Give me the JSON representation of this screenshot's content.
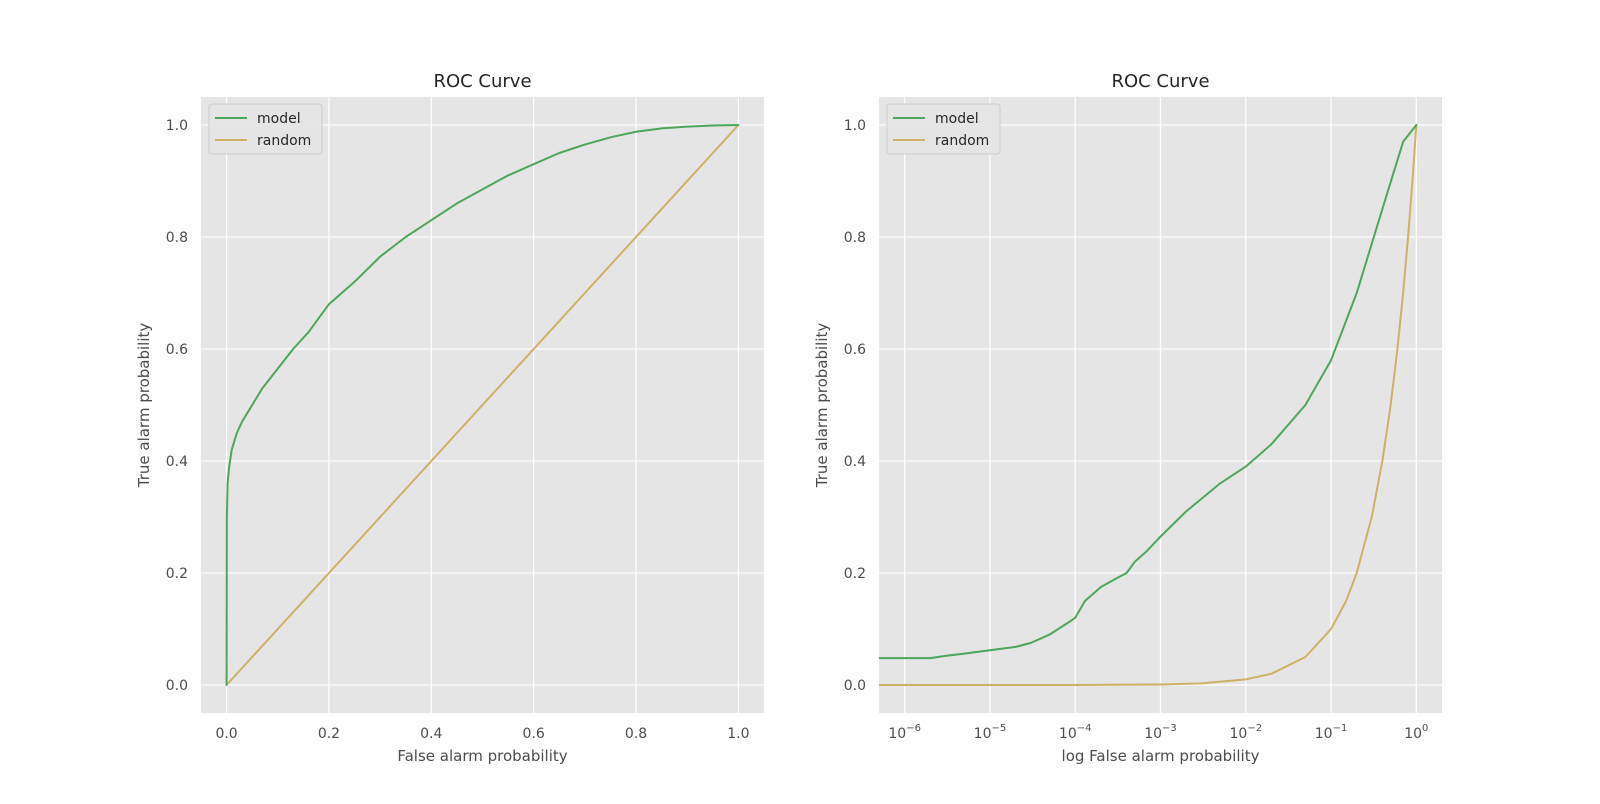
{
  "colors": {
    "model": "#4da65a",
    "random": "#cdb165",
    "background": "#e5e5e5"
  },
  "chart_data": [
    {
      "type": "line",
      "title": "ROC Curve",
      "xlabel": "False alarm probability",
      "ylabel": "True alarm probability",
      "xscale": "linear",
      "xlim": [
        -0.05,
        1.05
      ],
      "ylim": [
        -0.05,
        1.05
      ],
      "xticks": [
        0.0,
        0.2,
        0.4,
        0.6,
        0.8,
        1.0
      ],
      "xtick_labels": [
        "0.0",
        "0.2",
        "0.4",
        "0.6",
        "0.8",
        "1.0"
      ],
      "yticks": [
        0.0,
        0.2,
        0.4,
        0.6,
        0.8,
        1.0
      ],
      "ytick_labels": [
        "0.0",
        "0.2",
        "0.4",
        "0.6",
        "0.8",
        "1.0"
      ],
      "grid": true,
      "legend": "top-left",
      "series": [
        {
          "name": "model",
          "color": "#4da65a",
          "points": [
            [
              0.0,
              0.0
            ],
            [
              0.0005,
              0.3
            ],
            [
              0.002,
              0.36
            ],
            [
              0.005,
              0.39
            ],
            [
              0.01,
              0.42
            ],
            [
              0.02,
              0.45
            ],
            [
              0.03,
              0.47
            ],
            [
              0.05,
              0.5
            ],
            [
              0.07,
              0.53
            ],
            [
              0.1,
              0.565
            ],
            [
              0.13,
              0.6
            ],
            [
              0.16,
              0.63
            ],
            [
              0.2,
              0.68
            ],
            [
              0.25,
              0.72
            ],
            [
              0.3,
              0.765
            ],
            [
              0.35,
              0.8
            ],
            [
              0.4,
              0.83
            ],
            [
              0.45,
              0.86
            ],
            [
              0.5,
              0.885
            ],
            [
              0.55,
              0.91
            ],
            [
              0.6,
              0.93
            ],
            [
              0.65,
              0.95
            ],
            [
              0.7,
              0.965
            ],
            [
              0.75,
              0.978
            ],
            [
              0.8,
              0.988
            ],
            [
              0.85,
              0.994
            ],
            [
              0.9,
              0.997
            ],
            [
              0.95,
              0.999
            ],
            [
              1.0,
              1.0
            ]
          ]
        },
        {
          "name": "random",
          "color": "#cdb165",
          "points": [
            [
              0.0,
              0.0
            ],
            [
              1.0,
              1.0
            ]
          ]
        }
      ]
    },
    {
      "type": "line",
      "title": "ROC Curve",
      "xlabel": "log False alarm probability",
      "ylabel": "True alarm probability",
      "xscale": "log",
      "xlim": [
        5e-07,
        2
      ],
      "ylim": [
        -0.05,
        1.05
      ],
      "xticks": [
        1e-06,
        1e-05,
        0.0001,
        0.001,
        0.01,
        0.1,
        1
      ],
      "xtick_labels": [
        [
          "10",
          "−6"
        ],
        [
          "10",
          "−5"
        ],
        [
          "10",
          "−4"
        ],
        [
          "10",
          "−3"
        ],
        [
          "10",
          "−2"
        ],
        [
          "10",
          "−1"
        ],
        [
          "10",
          "0"
        ]
      ],
      "yticks": [
        0.0,
        0.2,
        0.4,
        0.6,
        0.8,
        1.0
      ],
      "ytick_labels": [
        "0.0",
        "0.2",
        "0.4",
        "0.6",
        "0.8",
        "1.0"
      ],
      "grid": true,
      "legend": "top-left",
      "series": [
        {
          "name": "model",
          "color": "#4da65a",
          "points": [
            [
              5e-07,
              0.048
            ],
            [
              1e-06,
              0.048
            ],
            [
              2e-06,
              0.048
            ],
            [
              3e-06,
              0.052
            ],
            [
              5e-06,
              0.056
            ],
            [
              1e-05,
              0.062
            ],
            [
              2e-05,
              0.068
            ],
            [
              3e-05,
              0.075
            ],
            [
              5e-05,
              0.09
            ],
            [
              8e-05,
              0.11
            ],
            [
              0.0001,
              0.12
            ],
            [
              0.00013,
              0.15
            ],
            [
              0.0002,
              0.175
            ],
            [
              0.0003,
              0.19
            ],
            [
              0.0004,
              0.2
            ],
            [
              0.0005,
              0.22
            ],
            [
              0.0007,
              0.24
            ],
            [
              0.001,
              0.265
            ],
            [
              0.002,
              0.31
            ],
            [
              0.005,
              0.36
            ],
            [
              0.01,
              0.39
            ],
            [
              0.02,
              0.43
            ],
            [
              0.05,
              0.5
            ],
            [
              0.1,
              0.58
            ],
            [
              0.2,
              0.7
            ],
            [
              0.4,
              0.85
            ],
            [
              0.7,
              0.97
            ],
            [
              1,
              1.0
            ]
          ]
        },
        {
          "name": "random",
          "color": "#cdb165",
          "points": [
            [
              5e-07,
              5e-07
            ],
            [
              1e-06,
              1e-06
            ],
            [
              1e-05,
              1e-05
            ],
            [
              0.0001,
              0.0001
            ],
            [
              0.001,
              0.001
            ],
            [
              0.003,
              0.003
            ],
            [
              0.01,
              0.01
            ],
            [
              0.02,
              0.02
            ],
            [
              0.05,
              0.05
            ],
            [
              0.1,
              0.1
            ],
            [
              0.15,
              0.15
            ],
            [
              0.2,
              0.2
            ],
            [
              0.3,
              0.3
            ],
            [
              0.4,
              0.4
            ],
            [
              0.5,
              0.5
            ],
            [
              0.6,
              0.6
            ],
            [
              0.7,
              0.7
            ],
            [
              0.8,
              0.8
            ],
            [
              0.9,
              0.9
            ],
            [
              1,
              1.0
            ]
          ]
        }
      ]
    }
  ]
}
